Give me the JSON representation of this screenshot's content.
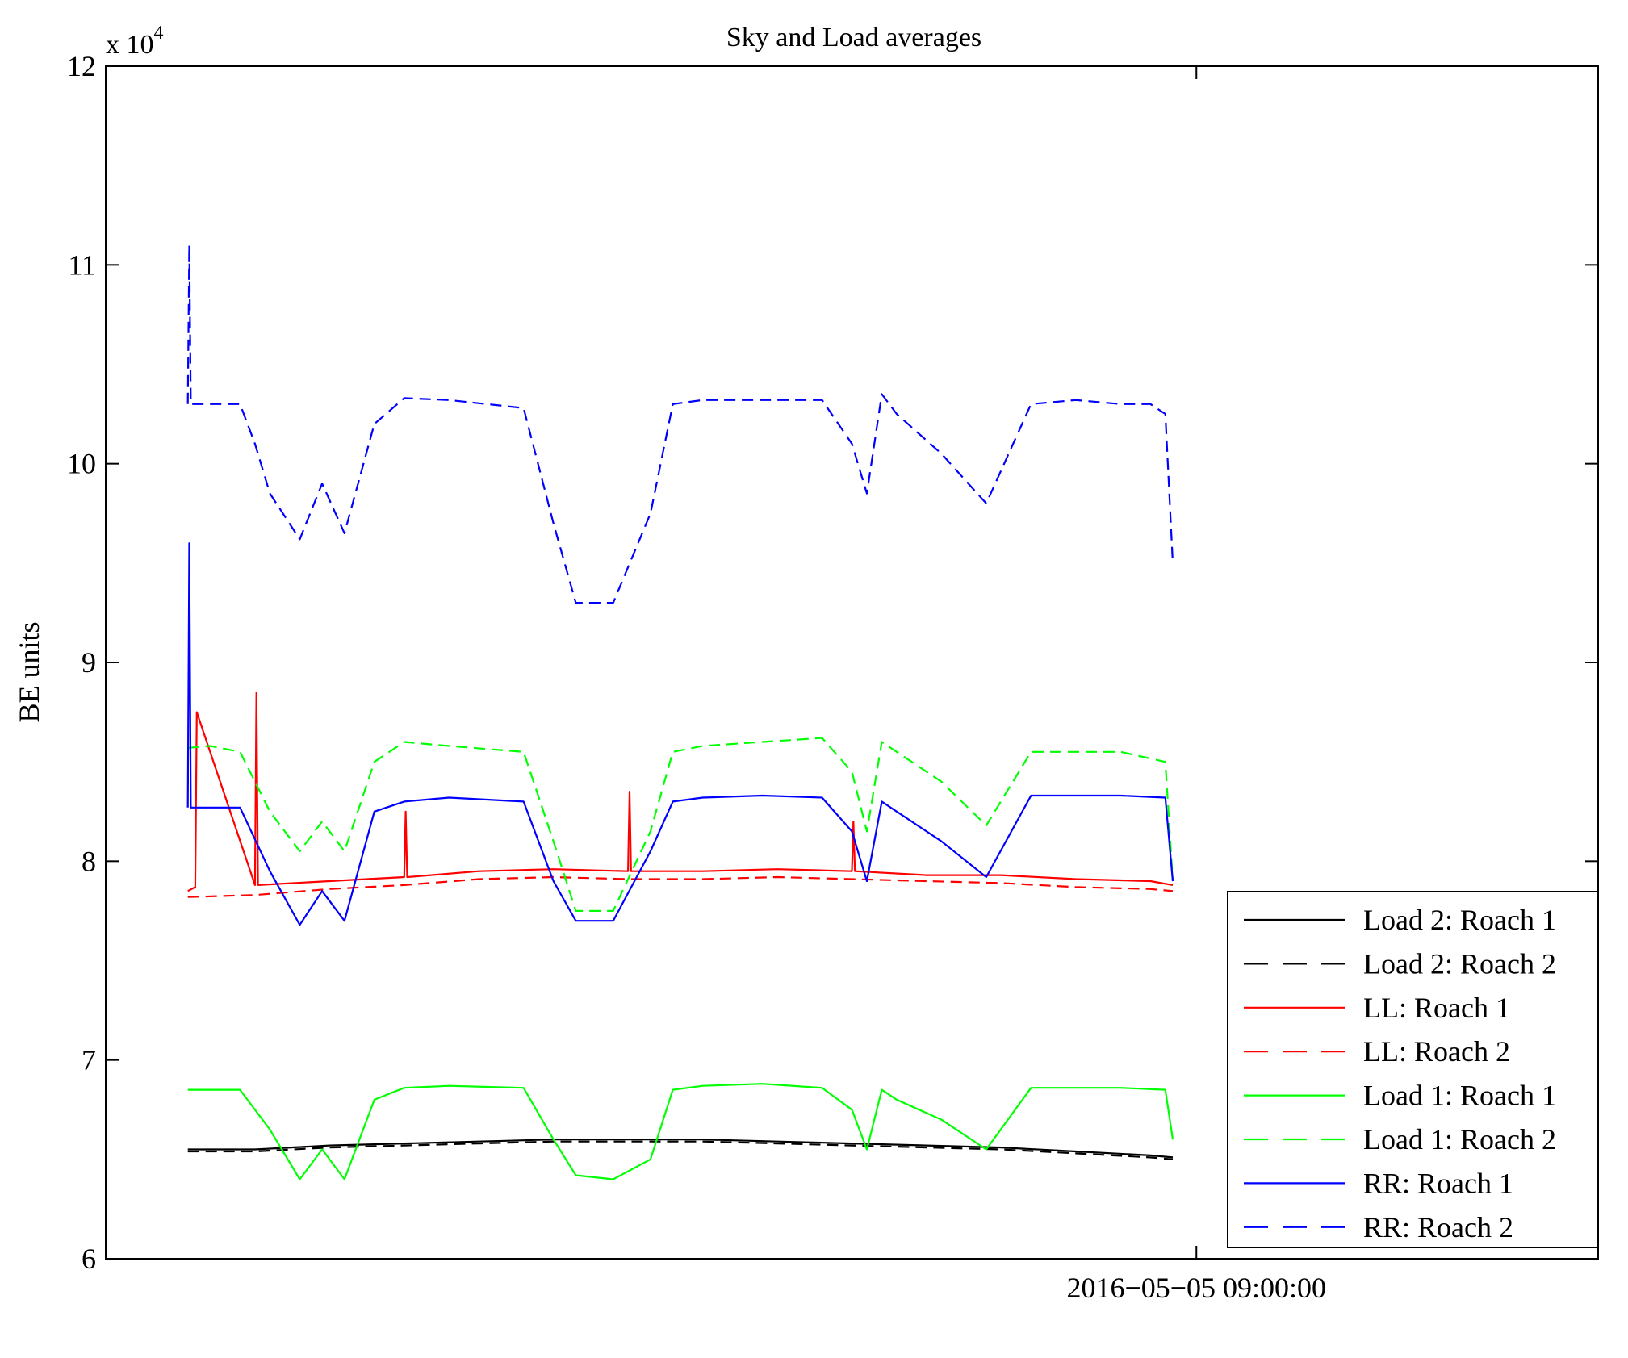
{
  "chart_data": {
    "type": "line",
    "title": "Sky and Load averages",
    "ylabel": "BE units",
    "xlabel": "",
    "y_exponent_label": "x 10",
    "y_exponent_power": "4",
    "ylim": [
      6,
      12
    ],
    "y_ticks": [
      6,
      7,
      8,
      9,
      10,
      11,
      12
    ],
    "y_tick_labels": [
      "6",
      "7",
      "8",
      "9",
      "10",
      "11",
      "12"
    ],
    "x_tick_labels": [
      "2016−05−05 09:00:00"
    ],
    "x_tick_positions": [
      0.7308
    ],
    "grid": false,
    "legend_position": "bottom-right",
    "series": [
      {
        "name": "Load 2: Roach 1",
        "color": "#000000",
        "dash": "solid",
        "x": [
          0.055,
          0.1,
          0.15,
          0.2,
          0.25,
          0.3,
          0.35,
          0.4,
          0.45,
          0.5,
          0.55,
          0.6,
          0.65,
          0.7,
          0.715
        ],
        "values": [
          6.55,
          6.55,
          6.57,
          6.58,
          6.59,
          6.6,
          6.6,
          6.6,
          6.59,
          6.58,
          6.57,
          6.56,
          6.54,
          6.52,
          6.51
        ]
      },
      {
        "name": "Load 2: Roach 2",
        "color": "#000000",
        "dash": "dashed",
        "x": [
          0.055,
          0.1,
          0.15,
          0.2,
          0.25,
          0.3,
          0.35,
          0.4,
          0.45,
          0.5,
          0.55,
          0.6,
          0.65,
          0.7,
          0.715
        ],
        "values": [
          6.54,
          6.54,
          6.56,
          6.57,
          6.58,
          6.59,
          6.59,
          6.59,
          6.58,
          6.57,
          6.56,
          6.55,
          6.53,
          6.51,
          6.5
        ]
      },
      {
        "name": "LL: Roach 1",
        "color": "#ff0000",
        "dash": "solid",
        "x": [
          0.055,
          0.06,
          0.061,
          0.1,
          0.101,
          0.102,
          0.15,
          0.2,
          0.201,
          0.202,
          0.25,
          0.3,
          0.35,
          0.351,
          0.352,
          0.4,
          0.45,
          0.5,
          0.501,
          0.502,
          0.55,
          0.6,
          0.65,
          0.7,
          0.715
        ],
        "values": [
          7.85,
          7.87,
          8.75,
          7.88,
          8.85,
          7.88,
          7.9,
          7.92,
          8.25,
          7.92,
          7.95,
          7.96,
          7.95,
          8.35,
          7.95,
          7.95,
          7.96,
          7.95,
          8.2,
          7.95,
          7.93,
          7.93,
          7.91,
          7.9,
          7.88
        ]
      },
      {
        "name": "LL: Roach 2",
        "color": "#ff0000",
        "dash": "dashed",
        "x": [
          0.055,
          0.1,
          0.15,
          0.2,
          0.25,
          0.3,
          0.35,
          0.4,
          0.45,
          0.5,
          0.55,
          0.6,
          0.65,
          0.7,
          0.715
        ],
        "values": [
          7.82,
          7.83,
          7.86,
          7.88,
          7.91,
          7.92,
          7.91,
          7.91,
          7.92,
          7.91,
          7.9,
          7.89,
          7.87,
          7.86,
          7.85
        ]
      },
      {
        "name": "Load 1: Roach 1",
        "color": "#00ff00",
        "dash": "solid",
        "x": [
          0.055,
          0.07,
          0.09,
          0.11,
          0.13,
          0.145,
          0.16,
          0.18,
          0.2,
          0.23,
          0.28,
          0.3,
          0.315,
          0.34,
          0.365,
          0.38,
          0.4,
          0.44,
          0.48,
          0.5,
          0.51,
          0.52,
          0.53,
          0.56,
          0.59,
          0.62,
          0.65,
          0.68,
          0.71,
          0.715
        ],
        "values": [
          6.85,
          6.85,
          6.85,
          6.65,
          6.4,
          6.55,
          6.4,
          6.8,
          6.86,
          6.87,
          6.86,
          6.6,
          6.42,
          6.4,
          6.5,
          6.85,
          6.87,
          6.88,
          6.86,
          6.75,
          6.55,
          6.85,
          6.8,
          6.7,
          6.55,
          6.86,
          6.86,
          6.86,
          6.85,
          6.6
        ]
      },
      {
        "name": "Load 1: Roach 2",
        "color": "#00ff00",
        "dash": "dashed",
        "x": [
          0.055,
          0.07,
          0.09,
          0.11,
          0.13,
          0.145,
          0.16,
          0.18,
          0.2,
          0.23,
          0.28,
          0.3,
          0.315,
          0.34,
          0.365,
          0.38,
          0.4,
          0.44,
          0.48,
          0.5,
          0.51,
          0.52,
          0.53,
          0.56,
          0.59,
          0.62,
          0.65,
          0.68,
          0.71,
          0.715
        ],
        "values": [
          8.57,
          8.58,
          8.55,
          8.25,
          8.05,
          8.2,
          8.05,
          8.5,
          8.6,
          8.58,
          8.55,
          8.1,
          7.75,
          7.75,
          8.15,
          8.55,
          8.58,
          8.6,
          8.62,
          8.45,
          8.15,
          8.6,
          8.55,
          8.4,
          8.18,
          8.55,
          8.55,
          8.55,
          8.5,
          7.9
        ]
      },
      {
        "name": "RR: Roach 1",
        "color": "#0000ff",
        "dash": "solid",
        "x": [
          0.055,
          0.056,
          0.057,
          0.07,
          0.09,
          0.11,
          0.13,
          0.145,
          0.16,
          0.18,
          0.2,
          0.23,
          0.28,
          0.3,
          0.315,
          0.34,
          0.365,
          0.38,
          0.4,
          0.44,
          0.48,
          0.5,
          0.51,
          0.52,
          0.53,
          0.56,
          0.59,
          0.62,
          0.65,
          0.68,
          0.71,
          0.715
        ],
        "values": [
          8.27,
          9.6,
          8.27,
          8.27,
          8.27,
          7.95,
          7.68,
          7.85,
          7.7,
          8.25,
          8.3,
          8.32,
          8.3,
          7.9,
          7.7,
          7.7,
          8.05,
          8.3,
          8.32,
          8.33,
          8.32,
          8.15,
          7.9,
          8.3,
          8.25,
          8.1,
          7.92,
          8.33,
          8.33,
          8.33,
          8.32,
          7.9
        ]
      },
      {
        "name": "RR: Roach 2",
        "color": "#0000ff",
        "dash": "dashed",
        "x": [
          0.055,
          0.056,
          0.057,
          0.07,
          0.09,
          0.1,
          0.11,
          0.13,
          0.145,
          0.16,
          0.18,
          0.2,
          0.23,
          0.28,
          0.3,
          0.315,
          0.34,
          0.365,
          0.38,
          0.4,
          0.44,
          0.48,
          0.5,
          0.51,
          0.52,
          0.53,
          0.56,
          0.59,
          0.62,
          0.65,
          0.68,
          0.7,
          0.71,
          0.715
        ],
        "values": [
          10.3,
          11.1,
          10.3,
          10.3,
          10.3,
          10.1,
          9.85,
          9.62,
          9.9,
          9.65,
          10.2,
          10.33,
          10.32,
          10.28,
          9.7,
          9.3,
          9.3,
          9.75,
          10.3,
          10.32,
          10.32,
          10.32,
          10.1,
          9.85,
          10.35,
          10.25,
          10.05,
          9.8,
          10.3,
          10.32,
          10.3,
          10.3,
          10.25,
          9.5
        ]
      }
    ]
  }
}
